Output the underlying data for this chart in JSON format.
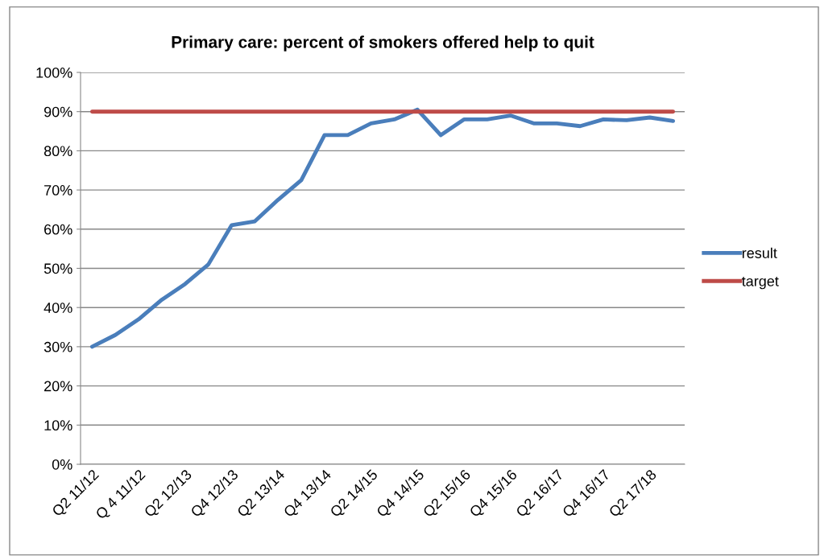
{
  "chart_data": {
    "type": "line",
    "title": "Primary care: percent of smokers offered help to quit",
    "categories": [
      "Q2 11/12",
      null,
      "Q 4 11/12",
      null,
      "Q2 12/13",
      null,
      "Q4 12/13",
      null,
      "Q2 13/14",
      null,
      "Q4 13/14",
      null,
      "Q2 14/15",
      null,
      "Q4 14/15",
      null,
      "Q2 15/16",
      null,
      "Q4 15/16",
      null,
      "Q2 16/17",
      null,
      "Q4 16/17",
      null,
      "Q2 17/18",
      null
    ],
    "series": [
      {
        "name": "result",
        "color": "#4a7ebb",
        "values": [
          30,
          33,
          37,
          42,
          46,
          51,
          61,
          62,
          67.5,
          72.5,
          84,
          84,
          87,
          88,
          90.5,
          84,
          88,
          88,
          89,
          87,
          87,
          86.3,
          88,
          87.8,
          88.5,
          87.6
        ]
      },
      {
        "name": "target",
        "color": "#be4b48",
        "values": [
          90,
          90,
          90,
          90,
          90,
          90,
          90,
          90,
          90,
          90,
          90,
          90,
          90,
          90,
          90,
          90,
          90,
          90,
          90,
          90,
          90,
          90,
          90,
          90,
          90,
          90
        ]
      }
    ],
    "ylim": [
      0,
      100
    ],
    "yticks": [
      {
        "value": 0,
        "label": "0%"
      },
      {
        "value": 10,
        "label": "10%"
      },
      {
        "value": 20,
        "label": "20%"
      },
      {
        "value": 30,
        "label": "30%"
      },
      {
        "value": 40,
        "label": "40%"
      },
      {
        "value": 50,
        "label": "50%"
      },
      {
        "value": 60,
        "label": "60%"
      },
      {
        "value": 70,
        "label": "70%"
      },
      {
        "value": 80,
        "label": "80%"
      },
      {
        "value": 90,
        "label": "90%"
      },
      {
        "value": 100,
        "label": "100%"
      }
    ],
    "grid": "y",
    "legend": "right",
    "marker": "none",
    "line_style": "solid"
  }
}
